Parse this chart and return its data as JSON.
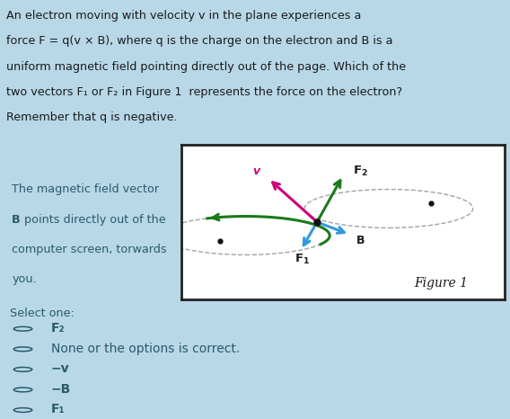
{
  "bg_color": "#b8d8e8",
  "white_box_color": "#ffffff",
  "question_text_line1": "An electron moving with velocity v in the plane experiences a",
  "question_text_line2": "force F = q(v × B), where q is the charge on the electron and B is a",
  "question_text_line3": "uniform magnetic field pointing directly out of the page. Which of the",
  "question_text_line4": "two vectors F₁ or F₂ in Figure 1  represents the force on the electron?",
  "question_text_line5": "Remember that q is negative.",
  "left_text_line1": "The magnetic field vector",
  "left_text_line2": "B points directly out of the",
  "left_text_line3": "computer screen, torwards",
  "left_text_line4": "you.",
  "figure_label": "Figure 1",
  "select_one": "Select one:",
  "options": [
    "F₂",
    "None or the options is correct.",
    "−v",
    "−B",
    "F₁"
  ],
  "options_bold": [
    true,
    false,
    true,
    true,
    true
  ],
  "text_color": "#2a5a6a",
  "dark_text": "#1a1a1a",
  "arrow_v_color": "#cc007a",
  "arrow_f2_color": "#1a7a1a",
  "arrow_f1_color": "#3399dd",
  "arrow_b_color": "#3399dd",
  "circle_color": "#999999",
  "dot_color": "#111111",
  "border_color": "#222222"
}
